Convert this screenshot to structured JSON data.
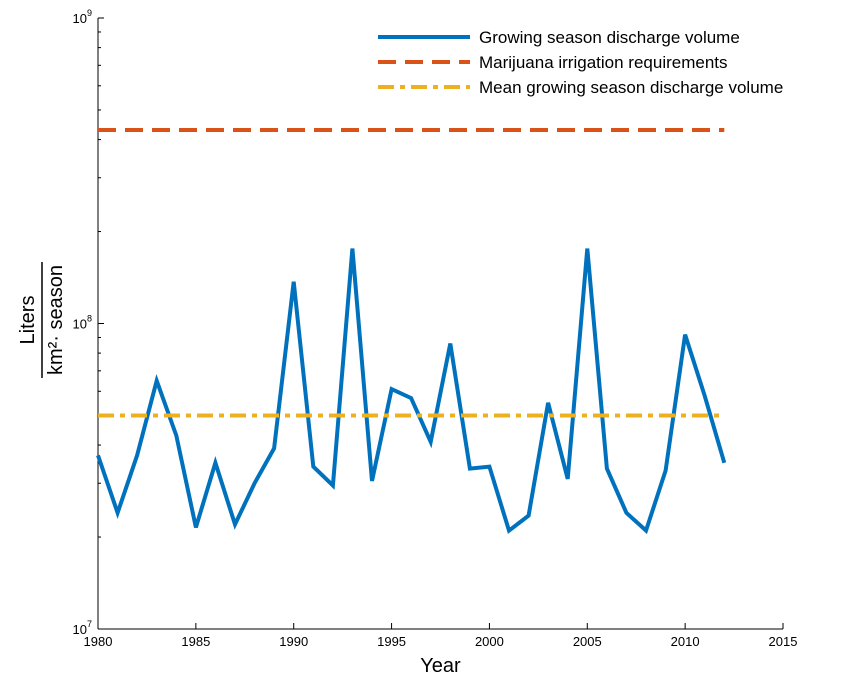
{
  "chart_data": {
    "type": "line",
    "xlabel": "Year",
    "ylabel_numerator": "Liters",
    "ylabel_denominator": "km²· season",
    "yscale": "log",
    "xlim": [
      1980,
      2015
    ],
    "ylim": [
      10000000,
      1000000000
    ],
    "x_ticks": [
      1980,
      1985,
      1990,
      1995,
      2000,
      2005,
      2010,
      2015
    ],
    "x_tick_labels": [
      "1980",
      "1985",
      "1990",
      "1995",
      "2000",
      "2005",
      "2010",
      "2015"
    ],
    "y_ticks": [
      10000000,
      100000000,
      1000000000
    ],
    "y_tick_labels": [
      {
        "base": "10",
        "exp": "7"
      },
      {
        "base": "10",
        "exp": "8"
      },
      {
        "base": "10",
        "exp": "9"
      }
    ],
    "grid": false,
    "legend_position": "top-right",
    "series": [
      {
        "name": "Growing season discharge volume",
        "color": "#0072BD",
        "style": "solid",
        "x": [
          1980,
          1981,
          1982,
          1983,
          1984,
          1985,
          1986,
          1987,
          1988,
          1989,
          1990,
          1991,
          1992,
          1993,
          1994,
          1995,
          1996,
          1997,
          1998,
          1999,
          2000,
          2001,
          2002,
          2003,
          2004,
          2005,
          2006,
          2007,
          2008,
          2009,
          2010,
          2011,
          2012
        ],
        "y": [
          37000000,
          24000000,
          37000000,
          65000000,
          43000000,
          21500000,
          35000000,
          22000000,
          30000000,
          39000000,
          137000000,
          34000000,
          29500000,
          176000000,
          30500000,
          61000000,
          57000000,
          41000000,
          86000000,
          33500000,
          34000000,
          21000000,
          23500000,
          55000000,
          31000000,
          176000000,
          33500000,
          24000000,
          21000000,
          33000000,
          92000000,
          58000000,
          35000000
        ]
      },
      {
        "name": "Marijuana irrigation requirements",
        "color": "#D95319",
        "style": "dashed",
        "x": [
          1980,
          2012
        ],
        "y": [
          430000000,
          430000000
        ]
      },
      {
        "name": "Mean growing season discharge volume",
        "color": "#EDB120",
        "style": "dashdot",
        "x": [
          1980,
          2012
        ],
        "y": [
          50000000,
          50000000
        ]
      }
    ]
  }
}
